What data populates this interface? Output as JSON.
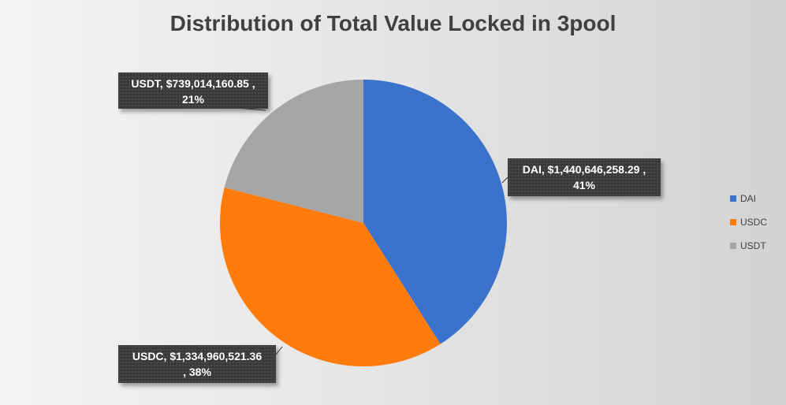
{
  "colors": {
    "DAI": "#3a72cc",
    "USDC": "#ff7b0b",
    "USDT": "#a5a5a5"
  },
  "chart_data": {
    "type": "pie",
    "title": "Distribution of Total Value Locked in 3pool",
    "categories": [
      "DAI",
      "USDC",
      "USDT"
    ],
    "values": [
      1440646258.29,
      1334960521.36,
      739014160.85
    ],
    "percentages": [
      41,
      38,
      21
    ],
    "data_labels": {
      "dai": {
        "line1": "DAI,  $1,440,646,258.29 ,",
        "line2": "41%"
      },
      "usdc": {
        "line1": "USDC,  $1,334,960,521.36",
        "line2": ", 38%"
      },
      "usdt": {
        "line1": "USDT,  $739,014,160.85 ,",
        "line2": "21%"
      }
    },
    "legend": {
      "position": "right",
      "entries": [
        "DAI",
        "USDC",
        "USDT"
      ]
    }
  }
}
